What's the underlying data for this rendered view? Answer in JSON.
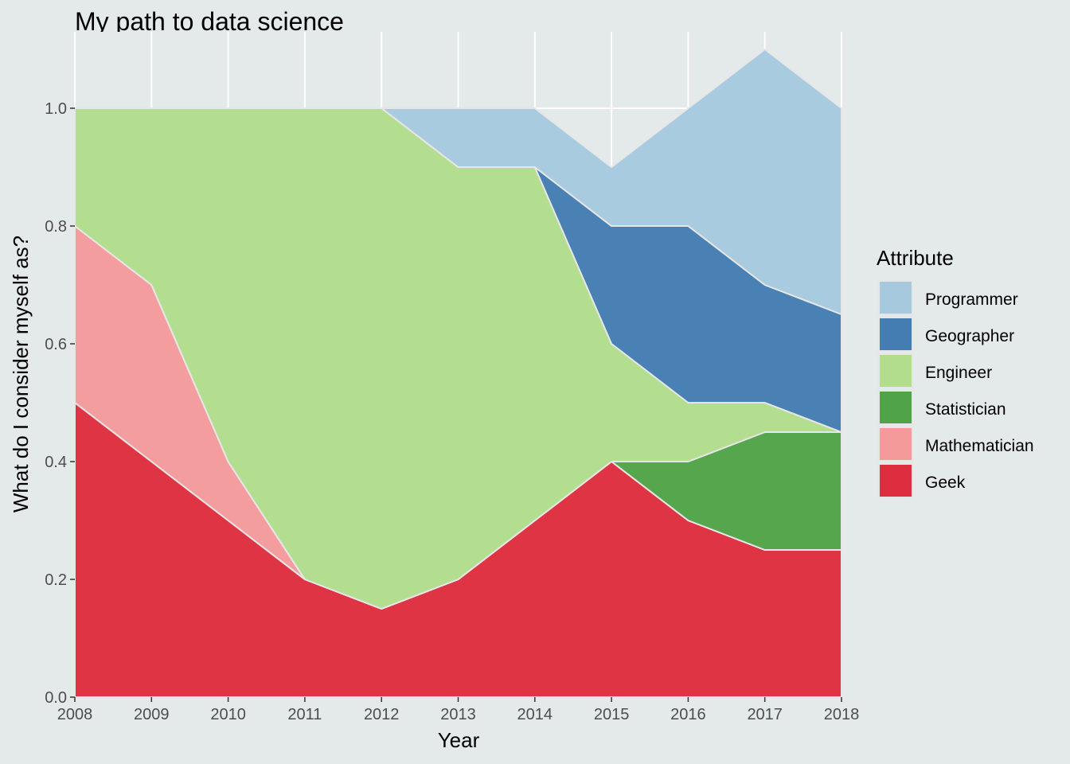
{
  "chart_data": {
    "type": "area",
    "stacked": true,
    "title": "My path to data science",
    "xlabel": "Year",
    "ylabel": "What do I consider myself as?",
    "x": [
      2008,
      2009,
      2010,
      2011,
      2012,
      2013,
      2014,
      2015,
      2016,
      2017,
      2018
    ],
    "xlim": [
      2008,
      2018
    ],
    "ylim": [
      0,
      1.1
    ],
    "x_ticks": [
      "2008",
      "2009",
      "2010",
      "2011",
      "2012",
      "2013",
      "2014",
      "2015",
      "2016",
      "2017",
      "2018"
    ],
    "y_ticks": [
      "0.0",
      "0.2",
      "0.4",
      "0.6",
      "0.8",
      "1.0"
    ],
    "grid": true,
    "legend_title": "Attribute",
    "legend_position": "right",
    "series": [
      {
        "name": "Geek",
        "color": "#de2d3e",
        "values": [
          0.5,
          0.4,
          0.3,
          0.2,
          0.15,
          0.2,
          0.3,
          0.4,
          0.3,
          0.25,
          0.25
        ]
      },
      {
        "name": "Mathematician",
        "color": "#f49a9b",
        "values": [
          0.3,
          0.3,
          0.1,
          0,
          0,
          0,
          0,
          0,
          0,
          0,
          0
        ]
      },
      {
        "name": "Statistician",
        "color": "#51a347",
        "values": [
          0,
          0,
          0,
          0,
          0,
          0,
          0,
          0,
          0.1,
          0.2,
          0.2
        ]
      },
      {
        "name": "Engineer",
        "color": "#b1dd8c",
        "values": [
          0.2,
          0.3,
          0.6,
          0.8,
          0.85,
          0.7,
          0.6,
          0.2,
          0.1,
          0.05,
          0
        ]
      },
      {
        "name": "Geographer",
        "color": "#437db2",
        "values": [
          0,
          0,
          0,
          0,
          0,
          0,
          0,
          0.2,
          0.3,
          0.2,
          0.2
        ]
      },
      {
        "name": "Programmer",
        "color": "#a6c9de",
        "values": [
          0,
          0,
          0,
          0,
          0,
          0.1,
          0.1,
          0.1,
          0.2,
          0.4,
          0.35
        ]
      }
    ],
    "legend_order": [
      "Programmer",
      "Geographer",
      "Engineer",
      "Statistician",
      "Mathematician",
      "Geek"
    ]
  }
}
